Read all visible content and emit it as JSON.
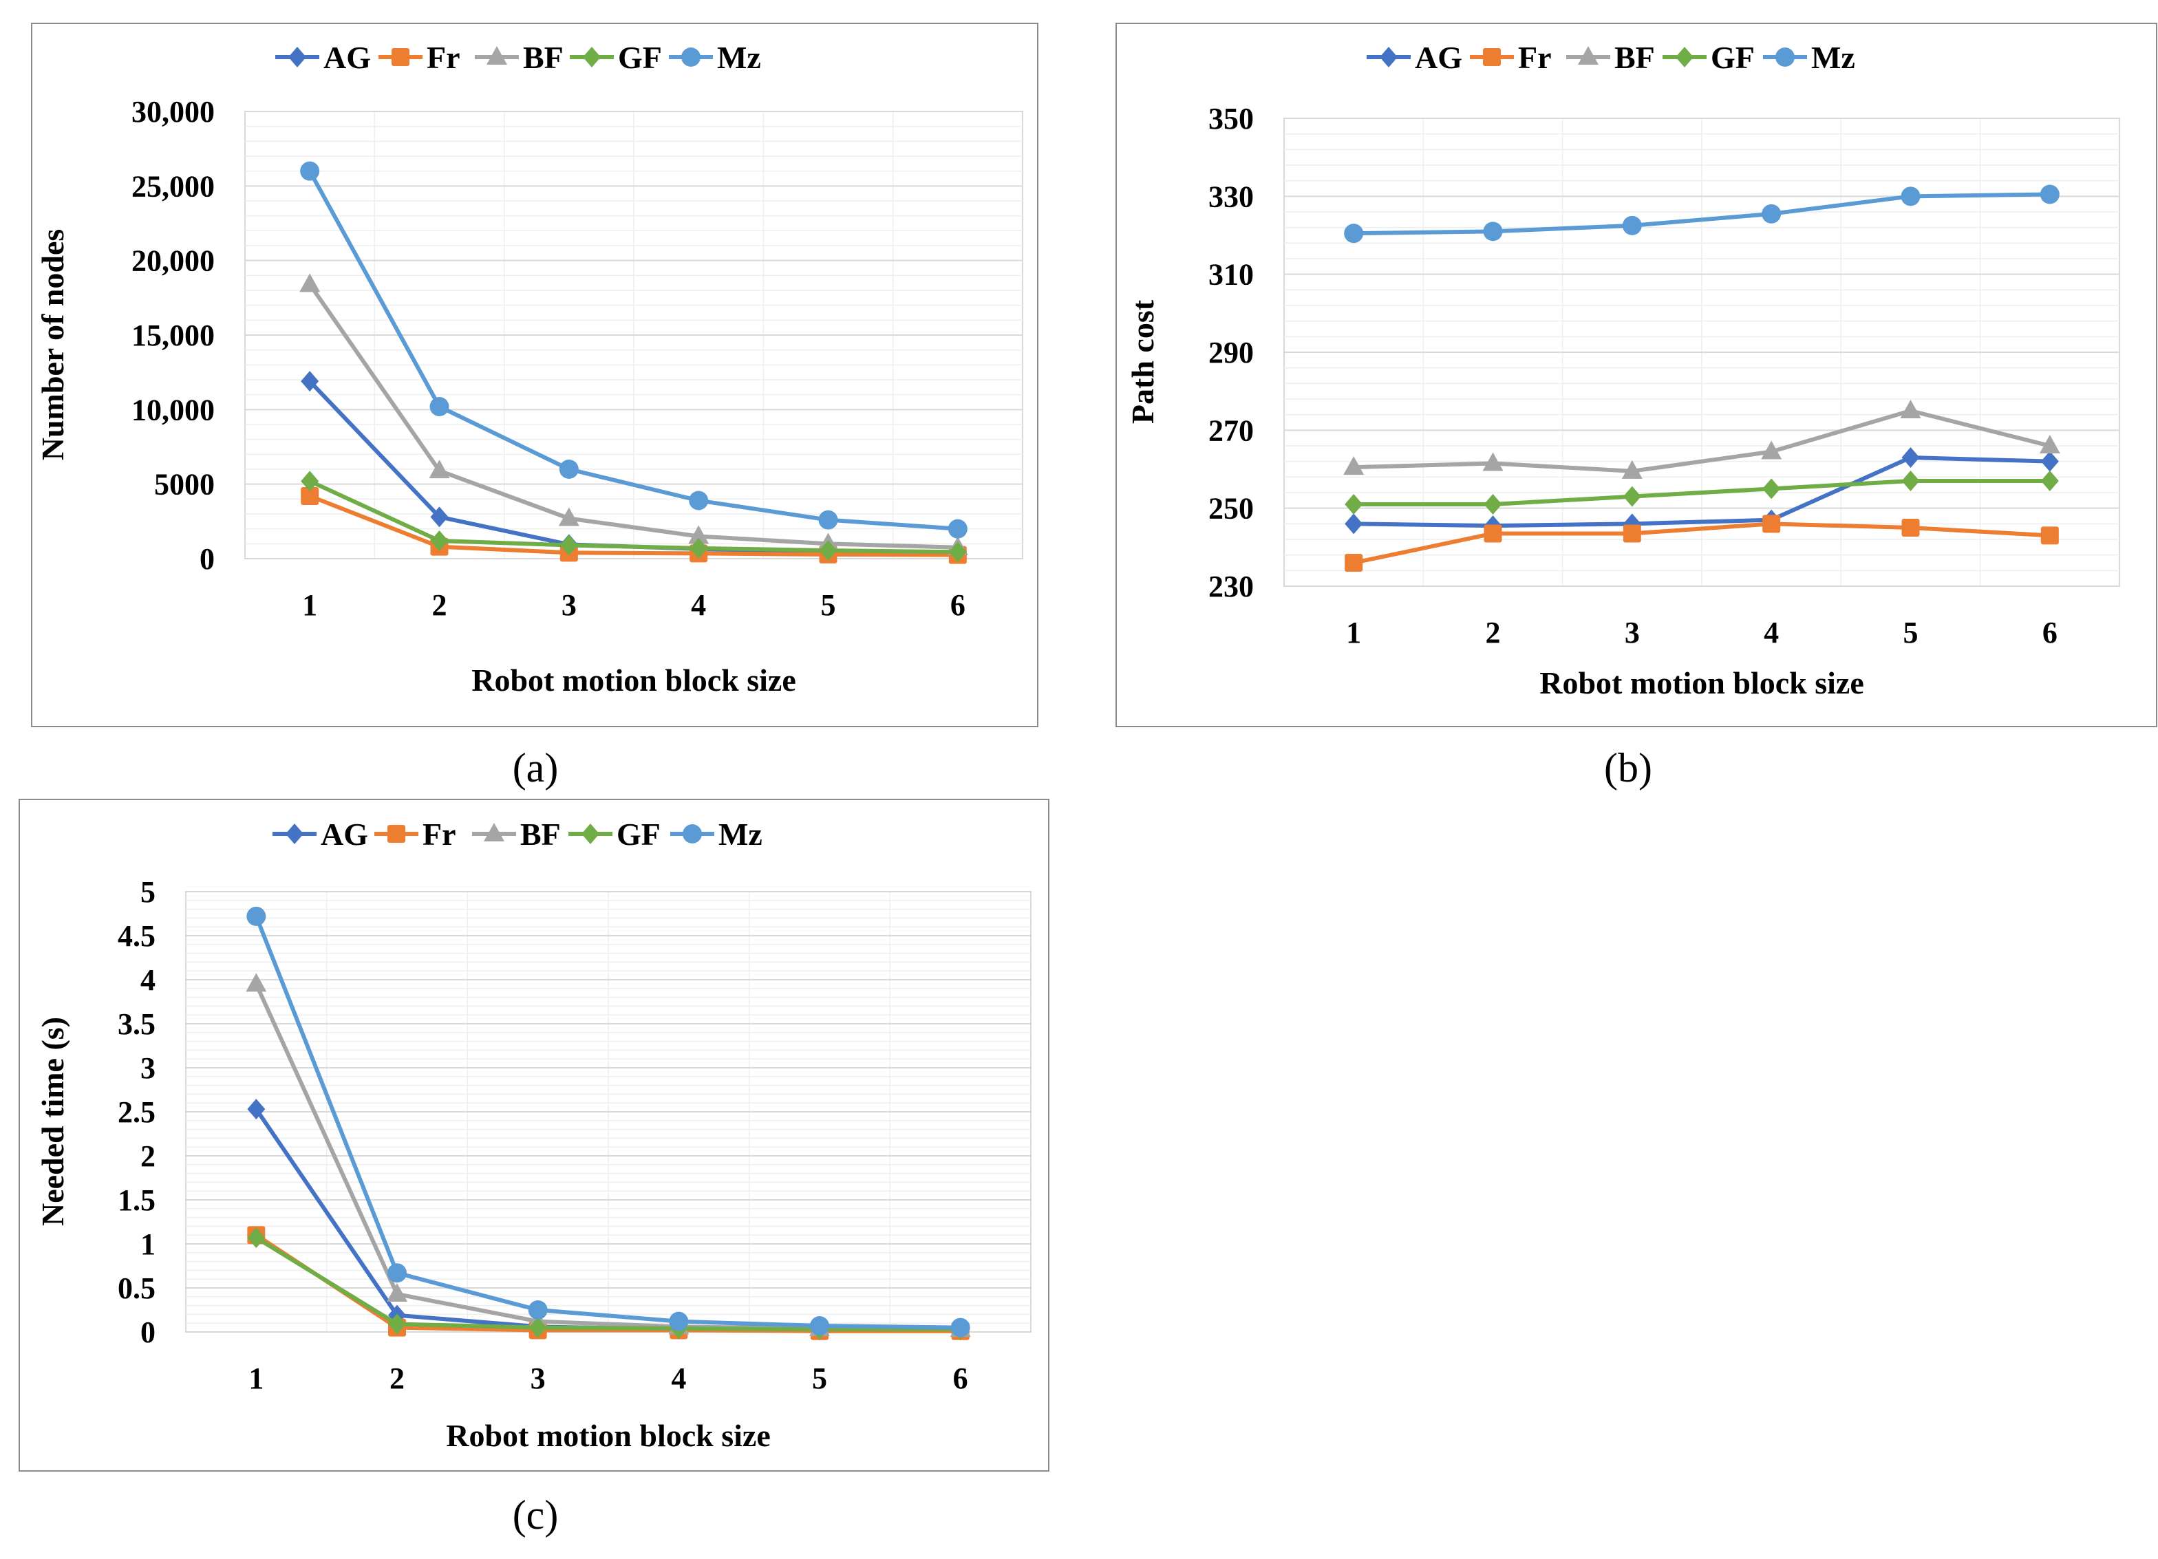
{
  "colors": {
    "AG": "#4472C4",
    "Fr": "#ED7D31",
    "BF": "#A5A5A5",
    "GF": "#70AD47",
    "Mz": "#5B9BD5"
  },
  "chart_data": [
    {
      "id": "a",
      "type": "line",
      "caption": "(a)",
      "xlabel": "Robot motion block size",
      "ylabel": "Number of nodes",
      "categories": [
        "1",
        "2",
        "3",
        "4",
        "5",
        "6"
      ],
      "ylim": [
        0,
        30000
      ],
      "yticks": [
        0,
        5000,
        10000,
        15000,
        20000,
        25000,
        30000
      ],
      "ytick_labels": [
        "0",
        "5000",
        "10,000",
        "15,000",
        "20,000",
        "25,000",
        "30,000"
      ],
      "minor_step": 1000,
      "series": [
        {
          "name": "AG",
          "marker": "diamond",
          "values": [
            11900,
            2800,
            950,
            650,
            450,
            350
          ]
        },
        {
          "name": "Fr",
          "marker": "square",
          "values": [
            4200,
            800,
            400,
            350,
            280,
            250
          ]
        },
        {
          "name": "BF",
          "marker": "triangle",
          "values": [
            18400,
            5900,
            2700,
            1500,
            1000,
            750
          ]
        },
        {
          "name": "GF",
          "marker": "diamond",
          "values": [
            5200,
            1200,
            900,
            700,
            550,
            450
          ]
        },
        {
          "name": "Mz",
          "marker": "circle",
          "values": [
            26000,
            10200,
            6000,
            3900,
            2600,
            2000
          ]
        }
      ]
    },
    {
      "id": "b",
      "type": "line",
      "caption": "(b)",
      "xlabel": "Robot motion block size",
      "ylabel": "Path cost",
      "categories": [
        "1",
        "2",
        "3",
        "4",
        "5",
        "6"
      ],
      "ylim": [
        230,
        350
      ],
      "yticks": [
        230,
        250,
        270,
        290,
        310,
        330,
        350
      ],
      "ytick_labels": [
        "230",
        "250",
        "270",
        "290",
        "310",
        "330",
        "350"
      ],
      "minor_step": 4,
      "series": [
        {
          "name": "AG",
          "marker": "diamond",
          "values": [
            246,
            245.5,
            246,
            247,
            263,
            262
          ]
        },
        {
          "name": "Fr",
          "marker": "square",
          "values": [
            236,
            243.5,
            243.5,
            246,
            245,
            243
          ]
        },
        {
          "name": "BF",
          "marker": "triangle",
          "values": [
            260.5,
            261.5,
            259.5,
            264.5,
            275,
            266
          ]
        },
        {
          "name": "GF",
          "marker": "diamond",
          "values": [
            251,
            251,
            253,
            255,
            257,
            257
          ]
        },
        {
          "name": "Mz",
          "marker": "circle",
          "values": [
            320.5,
            321,
            322.5,
            325.5,
            330,
            330.5
          ]
        }
      ]
    },
    {
      "id": "c",
      "type": "line",
      "caption": "(c)",
      "xlabel": "Robot motion block size",
      "ylabel": "Needed time (s)",
      "categories": [
        "1",
        "2",
        "3",
        "4",
        "5",
        "6"
      ],
      "ylim": [
        0,
        5
      ],
      "yticks": [
        0,
        0.5,
        1,
        1.5,
        2,
        2.5,
        3,
        3.5,
        4,
        4.5,
        5
      ],
      "ytick_labels": [
        "0",
        "0.5",
        "1",
        "1.5",
        "2",
        "2.5",
        "3",
        "3.5",
        "4",
        "4.5",
        "5"
      ],
      "minor_step": 0.1,
      "series": [
        {
          "name": "AG",
          "marker": "diamond",
          "values": [
            2.53,
            0.19,
            0.06,
            0.03,
            0.02,
            0.02
          ]
        },
        {
          "name": "Fr",
          "marker": "square",
          "values": [
            1.1,
            0.05,
            0.02,
            0.02,
            0.01,
            0.01
          ]
        },
        {
          "name": "BF",
          "marker": "triangle",
          "values": [
            3.95,
            0.43,
            0.12,
            0.06,
            0.04,
            0.03
          ]
        },
        {
          "name": "GF",
          "marker": "diamond",
          "values": [
            1.07,
            0.09,
            0.05,
            0.04,
            0.03,
            0.03
          ]
        },
        {
          "name": "Mz",
          "marker": "circle",
          "values": [
            4.72,
            0.67,
            0.25,
            0.12,
            0.07,
            0.05
          ]
        }
      ]
    }
  ]
}
